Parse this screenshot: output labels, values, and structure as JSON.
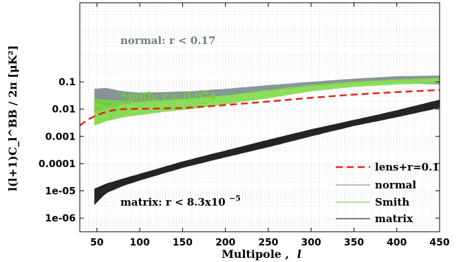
{
  "chart_data": {
    "type": "line",
    "title": "",
    "xlabel": "Multipole ,",
    "xlabel_symbol": "l",
    "ylabel": "l(l+1)C_l^BB / 2π [μK²]",
    "xlim": [
      30,
      450
    ],
    "ylim_log10": [
      -6.5,
      1.9
    ],
    "log_y": true,
    "grid": true,
    "legend_position": "bottom-right",
    "x_ticks": [
      50,
      100,
      150,
      200,
      250,
      300,
      350,
      400,
      450
    ],
    "x_tick_labels": [
      "50",
      "100",
      "150",
      "200",
      "250",
      "300",
      "350",
      "400",
      "450"
    ],
    "y_ticks": [
      1e-06,
      1e-05,
      0.0001,
      0.001,
      0.01,
      0.1
    ],
    "y_tick_labels": [
      "1e-06",
      "1e-05",
      "0.0001",
      "0.001",
      "0.01",
      "0.1"
    ],
    "series": [
      {
        "name": "lens+r=0.1",
        "color": "#e8201b",
        "style": "dashed",
        "x": [
          30,
          40,
          50,
          60,
          70,
          80,
          100,
          120,
          150,
          180,
          200,
          250,
          300,
          350,
          400,
          450
        ],
        "y": [
          0.0025,
          0.0042,
          0.006,
          0.0078,
          0.0092,
          0.0099,
          0.0103,
          0.0104,
          0.011,
          0.0125,
          0.014,
          0.019,
          0.026,
          0.034,
          0.042,
          0.05
        ]
      },
      {
        "name": "normal",
        "color": "#6e7f7f",
        "style": "band",
        "x": [
          47,
          60,
          80,
          100,
          130,
          160,
          200,
          250,
          300,
          350,
          400,
          450
        ],
        "y_low": [
          0.007,
          0.011,
          0.015,
          0.017,
          0.02,
          0.024,
          0.03,
          0.045,
          0.065,
          0.08,
          0.09,
          0.08
        ],
        "y_high": [
          0.055,
          0.06,
          0.045,
          0.04,
          0.042,
          0.045,
          0.055,
          0.075,
          0.1,
          0.13,
          0.16,
          0.17
        ]
      },
      {
        "name": "Smith",
        "color": "#6fd234",
        "style": "band",
        "x": [
          47,
          60,
          80,
          100,
          130,
          160,
          200,
          250,
          300,
          350,
          400,
          450
        ],
        "y_low": [
          0.0025,
          0.0035,
          0.005,
          0.006,
          0.008,
          0.01,
          0.015,
          0.025,
          0.045,
          0.065,
          0.08,
          0.09
        ],
        "y_high": [
          0.024,
          0.022,
          0.02,
          0.02,
          0.022,
          0.025,
          0.032,
          0.05,
          0.075,
          0.1,
          0.12,
          0.14
        ]
      },
      {
        "name": "matrix",
        "color": "#000000",
        "style": "band",
        "x": [
          47,
          60,
          80,
          100,
          150,
          200,
          250,
          300,
          350,
          400,
          450
        ],
        "y_low": [
          3e-06,
          8e-06,
          1.5e-05,
          2.4e-05,
          7e-05,
          0.00017,
          0.0004,
          0.001,
          0.0024,
          0.005,
          0.011
        ],
        "y_high": [
          1.2e-05,
          1.8e-05,
          2.8e-05,
          4.2e-05,
          0.00012,
          0.0003,
          0.00075,
          0.0018,
          0.004,
          0.009,
          0.022
        ]
      }
    ],
    "annotations": [
      {
        "text": "normal: r < 0.17",
        "color": "#6e7f7f"
      },
      {
        "text": "Smith: r < 0.074",
        "color": "#6fd234"
      },
      {
        "text": "matrix: r < 8.3x10",
        "superscript": "−5",
        "color": "#000000"
      }
    ],
    "legend": [
      {
        "label": "lens+r=0.1",
        "color": "#e8201b",
        "style": "dashed"
      },
      {
        "label": "normal",
        "color": "#6e7f7f",
        "style": "solid"
      },
      {
        "label": "Smith",
        "color": "#6fd234",
        "style": "solid"
      },
      {
        "label": "matrix",
        "color": "#000000",
        "style": "solid"
      }
    ]
  }
}
